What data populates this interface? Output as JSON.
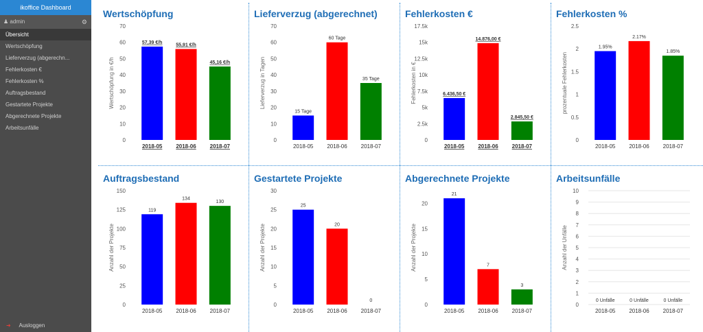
{
  "app": {
    "brand": "ikoffice Dashboard",
    "user": "admin"
  },
  "nav": [
    "Übersicht",
    "Wertschöpfung",
    "Lieferverzug (abgerechn...",
    "Fehlerkosten €",
    "Fehlerkosten %",
    "Auftragsbestand",
    "Gestartete Projekte",
    "Abgerechnete Projekte",
    "Arbeitsunfälle"
  ],
  "logout_label": "Ausloggen",
  "colors": {
    "accent": "#2b87d3",
    "title": "#1e6db5",
    "sidebar": "#4b4b4b",
    "bar1": "#0000ff",
    "bar2": "#ff0000",
    "bar3": "#008000"
  },
  "charts": [
    {
      "title": "Wertschöpfung",
      "chart_data": {
        "type": "bar",
        "categories": [
          "2018-05",
          "2018-06",
          "2018-07"
        ],
        "values": [
          57.39,
          55.91,
          45.16
        ],
        "labels": [
          "57,39 €/h",
          "55,91 €/h",
          "45,16 €/h"
        ],
        "ylabel": "Wertschöpfung in €/h",
        "ylim": [
          0,
          70
        ],
        "ticks": [
          "0",
          "10",
          "20",
          "30",
          "40",
          "50",
          "60",
          "70"
        ],
        "underline": true,
        "bold_x": true
      }
    },
    {
      "title": "Lieferverzug (abgerechnet)",
      "chart_data": {
        "type": "bar",
        "categories": [
          "2018-05",
          "2018-06",
          "2018-07"
        ],
        "values": [
          15,
          60,
          35
        ],
        "labels": [
          "15 Tage",
          "60 Tage",
          "35 Tage"
        ],
        "ylabel": "Lieferverzug in Tagen",
        "ylim": [
          0,
          70
        ],
        "ticks": [
          "0",
          "10",
          "20",
          "30",
          "40",
          "50",
          "60",
          "70"
        ],
        "underline": false,
        "bold_x": false
      }
    },
    {
      "title": "Fehlerkosten €",
      "chart_data": {
        "type": "bar",
        "categories": [
          "2018-05",
          "2018-06",
          "2018-07"
        ],
        "values": [
          6436.5,
          14876.0,
          2845.5
        ],
        "labels": [
          "6.436,50 €",
          "14.876,00 €",
          "2.845,50 €"
        ],
        "ylabel": "Fehlerkosten in €",
        "ylim": [
          0,
          17500
        ],
        "ticks": [
          "0",
          "2.5k",
          "5k",
          "7.5k",
          "10k",
          "12.5k",
          "15k",
          "17.5k"
        ],
        "underline": true,
        "bold_x": true
      }
    },
    {
      "title": "Fehlerkosten %",
      "chart_data": {
        "type": "bar",
        "categories": [
          "2018-05",
          "2018-06",
          "2018-07"
        ],
        "values": [
          1.95,
          2.17,
          1.85
        ],
        "labels": [
          "1.95%",
          "2.17%",
          "1.85%"
        ],
        "ylabel": "prozentuale Fehlerkosten",
        "ylim": [
          0,
          2.5
        ],
        "ticks": [
          "0",
          "0.5",
          "1",
          "1.5",
          "2",
          "2.5"
        ],
        "underline": false,
        "bold_x": false
      }
    },
    {
      "title": "Auftragsbestand",
      "chart_data": {
        "type": "bar",
        "categories": [
          "2018-05",
          "2018-06",
          "2018-07"
        ],
        "values": [
          119,
          134,
          130
        ],
        "labels": [
          "119",
          "134",
          "130"
        ],
        "ylabel": "Anzahl der Projekte",
        "ylim": [
          0,
          150
        ],
        "ticks": [
          "0",
          "25",
          "50",
          "75",
          "100",
          "125",
          "150"
        ],
        "underline": false,
        "bold_x": false
      }
    },
    {
      "title": "Gestartete Projekte",
      "chart_data": {
        "type": "bar",
        "categories": [
          "2018-05",
          "2018-06",
          "2018-07"
        ],
        "values": [
          25,
          20,
          0
        ],
        "labels": [
          "25",
          "20",
          "0"
        ],
        "ylabel": "Anzahl der Projekte",
        "ylim": [
          0,
          30
        ],
        "ticks": [
          "0",
          "5",
          "10",
          "15",
          "20",
          "25",
          "30"
        ],
        "underline": false,
        "bold_x": false
      }
    },
    {
      "title": "Abgerechnete Projekte",
      "chart_data": {
        "type": "bar",
        "categories": [
          "2018-05",
          "2018-06",
          "2018-07"
        ],
        "values": [
          21,
          7,
          3
        ],
        "labels": [
          "21",
          "7",
          "3"
        ],
        "ylabel": "Anzahl der Projekte",
        "ylim": [
          0,
          22.5
        ],
        "ticks": [
          "0",
          "5",
          "10",
          "15",
          "20"
        ],
        "underline": false,
        "bold_x": false
      }
    },
    {
      "title": "Arbeitsunfälle",
      "chart_data": {
        "type": "bar",
        "categories": [
          "2018-05",
          "2018-06",
          "2018-07"
        ],
        "values": [
          0,
          0,
          0
        ],
        "labels": [
          "0 Unfälle",
          "0 Unfälle",
          "0 Unfälle"
        ],
        "ylabel": "Anzahl der Unfälle",
        "ylim": [
          0,
          10
        ],
        "ticks": [
          "0",
          "1",
          "2",
          "3",
          "4",
          "5",
          "6",
          "7",
          "8",
          "9",
          "10"
        ],
        "underline": false,
        "bold_x": false,
        "gridlines": true
      }
    }
  ]
}
